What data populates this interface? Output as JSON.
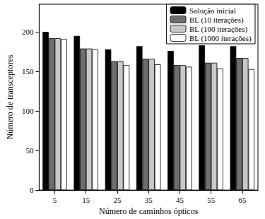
{
  "chart_data": {
    "type": "bar",
    "x_label": "Número de caminhos ópticos",
    "y_label": "Número de transceptores",
    "categories": [
      "5",
      "15",
      "25",
      "35",
      "45",
      "55",
      "65"
    ],
    "series": [
      {
        "name": "Solução inicial",
        "color": "#000000",
        "values": [
          200,
          195,
          178,
          182,
          176,
          183,
          182
        ]
      },
      {
        "name": "BL (10 iterações)",
        "color": "#6e6e6e",
        "values": [
          192,
          179,
          163,
          166,
          158,
          161,
          167
        ]
      },
      {
        "name": "BL (100 iterações)",
        "color": "#c8c8c8",
        "values": [
          192,
          179,
          163,
          166,
          158,
          161,
          167
        ]
      },
      {
        "name": "BL (1000 iterações)",
        "color": "#ffffff",
        "values": [
          191,
          178,
          158,
          159,
          156,
          154,
          153
        ]
      }
    ],
    "ylim": [
      0,
      235
    ],
    "yticks": [
      0,
      50,
      100,
      150,
      200
    ],
    "legend": "upper right",
    "grid": false
  }
}
